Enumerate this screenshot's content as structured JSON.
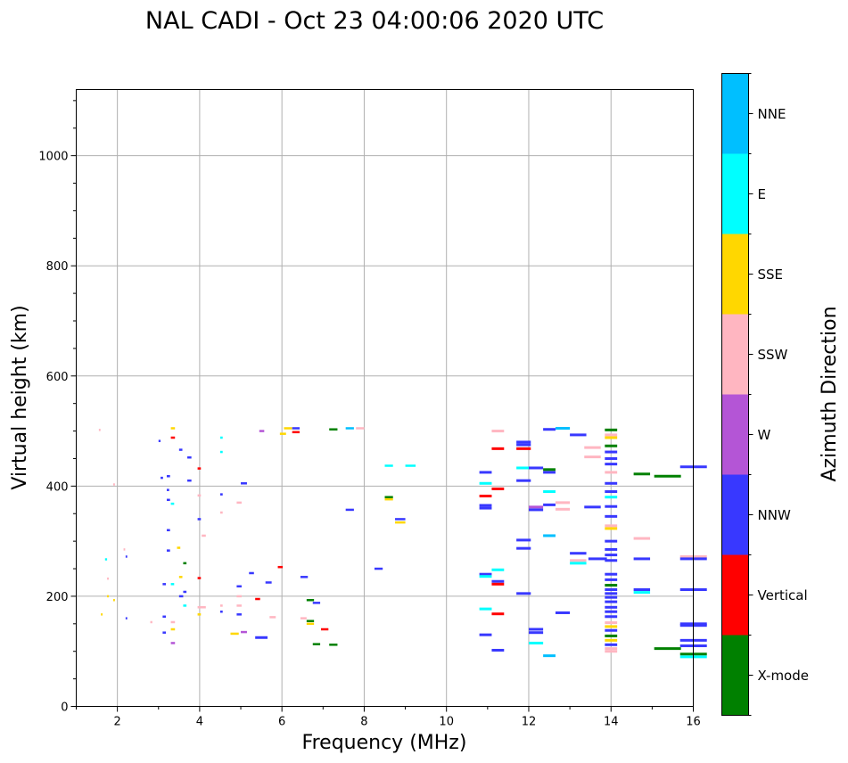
{
  "chart_data": {
    "type": "scatter",
    "title": "NAL CADI - Oct 23 04:00:06 2020 UTC",
    "xlabel": "Frequency (MHz)",
    "ylabel": "Virtual height (km)",
    "xlim": [
      1,
      16
    ],
    "ylim": [
      0,
      1120
    ],
    "xticks": [
      2,
      4,
      6,
      8,
      10,
      12,
      14,
      16
    ],
    "yticks": [
      0,
      200,
      400,
      600,
      800,
      1000
    ],
    "grid": true,
    "colorbar": {
      "label": "Azimuth Direction",
      "categories": [
        {
          "name": "X-mode",
          "color": "#008000"
        },
        {
          "name": "Vertical",
          "color": "#ff0000"
        },
        {
          "name": "NNW",
          "color": "#3838ff"
        },
        {
          "name": "W",
          "color": "#b455d6"
        },
        {
          "name": "SSW",
          "color": "#ffb6c1"
        },
        {
          "name": "SSE",
          "color": "#ffd700"
        },
        {
          "name": "E",
          "color": "#00ffff"
        },
        {
          "name": "NNE",
          "color": "#00bfff"
        }
      ]
    },
    "points": [
      {
        "f": 1.55,
        "h": 502,
        "w": 0.04,
        "d": "SSW"
      },
      {
        "f": 1.6,
        "h": 167,
        "w": 0.04,
        "d": "SSE"
      },
      {
        "f": 1.7,
        "h": 267,
        "w": 0.05,
        "d": "E"
      },
      {
        "f": 1.75,
        "h": 232,
        "w": 0.04,
        "d": "SSW"
      },
      {
        "f": 1.75,
        "h": 200,
        "w": 0.04,
        "d": "SSE"
      },
      {
        "f": 1.9,
        "h": 403,
        "w": 0.04,
        "d": "SSW"
      },
      {
        "f": 1.9,
        "h": 193,
        "w": 0.04,
        "d": "SSE"
      },
      {
        "f": 2.15,
        "h": 285,
        "w": 0.04,
        "d": "SSW"
      },
      {
        "f": 2.2,
        "h": 272,
        "w": 0.04,
        "d": "NNW"
      },
      {
        "f": 2.2,
        "h": 160,
        "w": 0.04,
        "d": "NNW"
      },
      {
        "f": 2.8,
        "h": 153,
        "w": 0.05,
        "d": "SSW"
      },
      {
        "f": 3.0,
        "h": 482,
        "w": 0.05,
        "d": "NNW"
      },
      {
        "f": 3.05,
        "h": 415,
        "w": 0.06,
        "d": "NNW"
      },
      {
        "f": 3.1,
        "h": 222,
        "w": 0.08,
        "d": "NNW"
      },
      {
        "f": 3.1,
        "h": 163,
        "w": 0.08,
        "d": "NNW"
      },
      {
        "f": 3.1,
        "h": 134,
        "w": 0.08,
        "d": "NNW"
      },
      {
        "f": 3.2,
        "h": 418,
        "w": 0.08,
        "d": "NNW"
      },
      {
        "f": 3.2,
        "h": 393,
        "w": 0.06,
        "d": "NNW"
      },
      {
        "f": 3.2,
        "h": 375,
        "w": 0.08,
        "d": "NNW"
      },
      {
        "f": 3.2,
        "h": 320,
        "w": 0.08,
        "d": "NNW"
      },
      {
        "f": 3.2,
        "h": 283,
        "w": 0.08,
        "d": "NNW"
      },
      {
        "f": 3.3,
        "h": 505,
        "w": 0.1,
        "d": "SSE"
      },
      {
        "f": 3.3,
        "h": 488,
        "w": 0.1,
        "d": "Vertical"
      },
      {
        "f": 3.3,
        "h": 368,
        "w": 0.08,
        "d": "E"
      },
      {
        "f": 3.3,
        "h": 222,
        "w": 0.08,
        "d": "E"
      },
      {
        "f": 3.3,
        "h": 153,
        "w": 0.1,
        "d": "SSW"
      },
      {
        "f": 3.3,
        "h": 140,
        "w": 0.1,
        "d": "SSE"
      },
      {
        "f": 3.3,
        "h": 115,
        "w": 0.1,
        "d": "W"
      },
      {
        "f": 3.45,
        "h": 288,
        "w": 0.08,
        "d": "SSE"
      },
      {
        "f": 3.5,
        "h": 466,
        "w": 0.08,
        "d": "NNW"
      },
      {
        "f": 3.5,
        "h": 235,
        "w": 0.08,
        "d": "SSE"
      },
      {
        "f": 3.5,
        "h": 200,
        "w": 0.1,
        "d": "NNW"
      },
      {
        "f": 3.6,
        "h": 260,
        "w": 0.08,
        "d": "X-mode"
      },
      {
        "f": 3.6,
        "h": 208,
        "w": 0.08,
        "d": "NNW"
      },
      {
        "f": 3.6,
        "h": 183,
        "w": 0.08,
        "d": "E"
      },
      {
        "f": 3.7,
        "h": 452,
        "w": 0.1,
        "d": "NNW"
      },
      {
        "f": 3.7,
        "h": 410,
        "w": 0.1,
        "d": "NNW"
      },
      {
        "f": 3.95,
        "h": 432,
        "w": 0.08,
        "d": "Vertical"
      },
      {
        "f": 3.95,
        "h": 383,
        "w": 0.08,
        "d": "SSW"
      },
      {
        "f": 3.95,
        "h": 340,
        "w": 0.08,
        "d": "NNW"
      },
      {
        "f": 3.95,
        "h": 233,
        "w": 0.08,
        "d": "Vertical"
      },
      {
        "f": 3.95,
        "h": 180,
        "w": 0.2,
        "d": "SSW"
      },
      {
        "f": 3.95,
        "h": 167,
        "w": 0.08,
        "d": "SSE"
      },
      {
        "f": 4.05,
        "h": 310,
        "w": 0.1,
        "d": "SSW"
      },
      {
        "f": 4.5,
        "h": 488,
        "w": 0.06,
        "d": "E"
      },
      {
        "f": 4.5,
        "h": 462,
        "w": 0.06,
        "d": "E"
      },
      {
        "f": 4.5,
        "h": 385,
        "w": 0.06,
        "d": "NNW"
      },
      {
        "f": 4.5,
        "h": 352,
        "w": 0.06,
        "d": "SSW"
      },
      {
        "f": 4.5,
        "h": 183,
        "w": 0.06,
        "d": "SSW"
      },
      {
        "f": 4.5,
        "h": 172,
        "w": 0.06,
        "d": "NNW"
      },
      {
        "f": 4.75,
        "h": 132,
        "w": 0.2,
        "d": "SSE"
      },
      {
        "f": 4.9,
        "h": 370,
        "w": 0.12,
        "d": "SSW"
      },
      {
        "f": 4.9,
        "h": 218,
        "w": 0.12,
        "d": "NNW"
      },
      {
        "f": 4.9,
        "h": 200,
        "w": 0.12,
        "d": "SSW"
      },
      {
        "f": 4.9,
        "h": 183,
        "w": 0.12,
        "d": "SSW"
      },
      {
        "f": 4.9,
        "h": 167,
        "w": 0.12,
        "d": "NNW"
      },
      {
        "f": 5.0,
        "h": 405,
        "w": 0.15,
        "d": "NNW"
      },
      {
        "f": 5.0,
        "h": 135,
        "w": 0.15,
        "d": "W"
      },
      {
        "f": 5.2,
        "h": 242,
        "w": 0.12,
        "d": "NNW"
      },
      {
        "f": 5.35,
        "h": 195,
        "w": 0.12,
        "d": "Vertical"
      },
      {
        "f": 5.35,
        "h": 125,
        "w": 0.3,
        "d": "NNW"
      },
      {
        "f": 5.45,
        "h": 500,
        "w": 0.12,
        "d": "W"
      },
      {
        "f": 5.6,
        "h": 225,
        "w": 0.15,
        "d": "NNW"
      },
      {
        "f": 5.7,
        "h": 162,
        "w": 0.15,
        "d": "SSW"
      },
      {
        "f": 5.9,
        "h": 253,
        "w": 0.12,
        "d": "Vertical"
      },
      {
        "f": 5.95,
        "h": 495,
        "w": 0.15,
        "d": "SSE"
      },
      {
        "f": 6.05,
        "h": 505,
        "w": 0.2,
        "d": "SSE"
      },
      {
        "f": 6.25,
        "h": 498,
        "w": 0.18,
        "d": "Vertical"
      },
      {
        "f": 6.25,
        "h": 505,
        "w": 0.18,
        "d": "NNW"
      },
      {
        "f": 6.45,
        "h": 235,
        "w": 0.18,
        "d": "NNW"
      },
      {
        "f": 6.45,
        "h": 160,
        "w": 0.15,
        "d": "SSW"
      },
      {
        "f": 6.6,
        "h": 193,
        "w": 0.18,
        "d": "X-mode"
      },
      {
        "f": 6.6,
        "h": 155,
        "w": 0.18,
        "d": "X-mode"
      },
      {
        "f": 6.6,
        "h": 150,
        "w": 0.18,
        "d": "SSE"
      },
      {
        "f": 6.75,
        "h": 188,
        "w": 0.18,
        "d": "NNW"
      },
      {
        "f": 6.75,
        "h": 113,
        "w": 0.18,
        "d": "X-mode"
      },
      {
        "f": 6.95,
        "h": 140,
        "w": 0.18,
        "d": "Vertical"
      },
      {
        "f": 7.15,
        "h": 503,
        "w": 0.2,
        "d": "X-mode"
      },
      {
        "f": 7.15,
        "h": 112,
        "w": 0.2,
        "d": "X-mode"
      },
      {
        "f": 7.55,
        "h": 505,
        "w": 0.2,
        "d": "NNE"
      },
      {
        "f": 7.55,
        "h": 357,
        "w": 0.2,
        "d": "NNW"
      },
      {
        "f": 7.8,
        "h": 505,
        "w": 0.2,
        "d": "SSW"
      },
      {
        "f": 8.25,
        "h": 250,
        "w": 0.2,
        "d": "NNW"
      },
      {
        "f": 8.5,
        "h": 437,
        "w": 0.2,
        "d": "E"
      },
      {
        "f": 8.5,
        "h": 380,
        "w": 0.2,
        "d": "X-mode"
      },
      {
        "f": 8.5,
        "h": 376,
        "w": 0.2,
        "d": "SSE"
      },
      {
        "f": 8.75,
        "h": 340,
        "w": 0.25,
        "d": "NNW"
      },
      {
        "f": 8.75,
        "h": 334,
        "w": 0.25,
        "d": "SSE"
      },
      {
        "f": 9.0,
        "h": 437,
        "w": 0.25,
        "d": "E"
      },
      {
        "f": 10.8,
        "h": 425,
        "w": 0.3,
        "d": "NNW"
      },
      {
        "f": 10.8,
        "h": 405,
        "w": 0.3,
        "d": "E"
      },
      {
        "f": 10.8,
        "h": 382,
        "w": 0.3,
        "d": "Vertical"
      },
      {
        "f": 10.8,
        "h": 365,
        "w": 0.3,
        "d": "NNW"
      },
      {
        "f": 10.8,
        "h": 360,
        "w": 0.3,
        "d": "NNW"
      },
      {
        "f": 10.8,
        "h": 240,
        "w": 0.3,
        "d": "NNW"
      },
      {
        "f": 10.8,
        "h": 236,
        "w": 0.3,
        "d": "E"
      },
      {
        "f": 10.8,
        "h": 177,
        "w": 0.3,
        "d": "E"
      },
      {
        "f": 10.8,
        "h": 130,
        "w": 0.3,
        "d": "NNW"
      },
      {
        "f": 11.1,
        "h": 500,
        "w": 0.3,
        "d": "SSW"
      },
      {
        "f": 11.1,
        "h": 468,
        "w": 0.3,
        "d": "Vertical"
      },
      {
        "f": 11.1,
        "h": 395,
        "w": 0.3,
        "d": "Vertical"
      },
      {
        "f": 11.1,
        "h": 248,
        "w": 0.3,
        "d": "E"
      },
      {
        "f": 11.1,
        "h": 227,
        "w": 0.3,
        "d": "NNW"
      },
      {
        "f": 11.1,
        "h": 222,
        "w": 0.3,
        "d": "Vertical"
      },
      {
        "f": 11.1,
        "h": 168,
        "w": 0.3,
        "d": "Vertical"
      },
      {
        "f": 11.1,
        "h": 102,
        "w": 0.3,
        "d": "NNW"
      },
      {
        "f": 11.7,
        "h": 480,
        "w": 0.35,
        "d": "NNW"
      },
      {
        "f": 11.7,
        "h": 475,
        "w": 0.35,
        "d": "NNW"
      },
      {
        "f": 11.7,
        "h": 468,
        "w": 0.35,
        "d": "Vertical"
      },
      {
        "f": 11.7,
        "h": 433,
        "w": 0.35,
        "d": "E"
      },
      {
        "f": 11.7,
        "h": 410,
        "w": 0.35,
        "d": "NNW"
      },
      {
        "f": 11.7,
        "h": 302,
        "w": 0.35,
        "d": "NNW"
      },
      {
        "f": 11.7,
        "h": 287,
        "w": 0.35,
        "d": "NNW"
      },
      {
        "f": 11.7,
        "h": 205,
        "w": 0.35,
        "d": "NNW"
      },
      {
        "f": 12.0,
        "h": 433,
        "w": 0.35,
        "d": "NNW"
      },
      {
        "f": 12.0,
        "h": 362,
        "w": 0.35,
        "d": "W"
      },
      {
        "f": 12.0,
        "h": 357,
        "w": 0.35,
        "d": "NNW"
      },
      {
        "f": 12.0,
        "h": 140,
        "w": 0.35,
        "d": "NNW"
      },
      {
        "f": 12.0,
        "h": 134,
        "w": 0.35,
        "d": "NNW"
      },
      {
        "f": 12.0,
        "h": 115,
        "w": 0.35,
        "d": "E"
      },
      {
        "f": 12.35,
        "h": 503,
        "w": 0.3,
        "d": "NNW"
      },
      {
        "f": 12.35,
        "h": 430,
        "w": 0.3,
        "d": "X-mode"
      },
      {
        "f": 12.35,
        "h": 425,
        "w": 0.3,
        "d": "NNW"
      },
      {
        "f": 12.35,
        "h": 390,
        "w": 0.3,
        "d": "E"
      },
      {
        "f": 12.35,
        "h": 366,
        "w": 0.3,
        "d": "NNW"
      },
      {
        "f": 12.35,
        "h": 310,
        "w": 0.3,
        "d": "NNE"
      },
      {
        "f": 12.35,
        "h": 92,
        "w": 0.3,
        "d": "NNE"
      },
      {
        "f": 12.65,
        "h": 505,
        "w": 0.35,
        "d": "NNE"
      },
      {
        "f": 12.65,
        "h": 370,
        "w": 0.35,
        "d": "SSW"
      },
      {
        "f": 12.65,
        "h": 358,
        "w": 0.35,
        "d": "SSW"
      },
      {
        "f": 12.65,
        "h": 170,
        "w": 0.35,
        "d": "NNW"
      },
      {
        "f": 13.0,
        "h": 493,
        "w": 0.4,
        "d": "NNW"
      },
      {
        "f": 13.0,
        "h": 278,
        "w": 0.4,
        "d": "NNW"
      },
      {
        "f": 13.0,
        "h": 265,
        "w": 0.4,
        "d": "SSW"
      },
      {
        "f": 13.0,
        "h": 260,
        "w": 0.4,
        "d": "E"
      },
      {
        "f": 13.35,
        "h": 470,
        "w": 0.4,
        "d": "SSW"
      },
      {
        "f": 13.35,
        "h": 453,
        "w": 0.4,
        "d": "SSW"
      },
      {
        "f": 13.35,
        "h": 362,
        "w": 0.4,
        "d": "NNW"
      },
      {
        "f": 13.45,
        "h": 268,
        "w": 0.45,
        "d": "NNW"
      },
      {
        "f": 13.85,
        "h": 502,
        "w": 0.3,
        "d": "X-mode"
      },
      {
        "f": 13.85,
        "h": 493,
        "w": 0.3,
        "d": "SSW"
      },
      {
        "f": 13.85,
        "h": 488,
        "w": 0.3,
        "d": "SSE"
      },
      {
        "f": 13.85,
        "h": 473,
        "w": 0.3,
        "d": "X-mode"
      },
      {
        "f": 13.85,
        "h": 462,
        "w": 0.3,
        "d": "NNW"
      },
      {
        "f": 13.85,
        "h": 450,
        "w": 0.3,
        "d": "NNW"
      },
      {
        "f": 13.85,
        "h": 440,
        "w": 0.3,
        "d": "NNW"
      },
      {
        "f": 13.85,
        "h": 425,
        "w": 0.3,
        "d": "SSW"
      },
      {
        "f": 13.85,
        "h": 405,
        "w": 0.3,
        "d": "NNW"
      },
      {
        "f": 13.85,
        "h": 390,
        "w": 0.3,
        "d": "NNW"
      },
      {
        "f": 13.85,
        "h": 380,
        "w": 0.3,
        "d": "E"
      },
      {
        "f": 13.85,
        "h": 363,
        "w": 0.3,
        "d": "NNW"
      },
      {
        "f": 13.85,
        "h": 345,
        "w": 0.3,
        "d": "NNW"
      },
      {
        "f": 13.85,
        "h": 328,
        "w": 0.3,
        "d": "SSW"
      },
      {
        "f": 13.85,
        "h": 323,
        "w": 0.3,
        "d": "SSE"
      },
      {
        "f": 13.85,
        "h": 300,
        "w": 0.3,
        "d": "NNW"
      },
      {
        "f": 13.85,
        "h": 285,
        "w": 0.3,
        "d": "NNW"
      },
      {
        "f": 13.85,
        "h": 275,
        "w": 0.3,
        "d": "NNW"
      },
      {
        "f": 13.85,
        "h": 265,
        "w": 0.3,
        "d": "NNW"
      },
      {
        "f": 13.85,
        "h": 240,
        "w": 0.3,
        "d": "NNW"
      },
      {
        "f": 13.85,
        "h": 230,
        "w": 0.3,
        "d": "NNW"
      },
      {
        "f": 13.85,
        "h": 220,
        "w": 0.3,
        "d": "X-mode"
      },
      {
        "f": 13.85,
        "h": 212,
        "w": 0.3,
        "d": "NNW"
      },
      {
        "f": 13.85,
        "h": 205,
        "w": 0.3,
        "d": "NNW"
      },
      {
        "f": 13.85,
        "h": 198,
        "w": 0.3,
        "d": "NNW"
      },
      {
        "f": 13.85,
        "h": 190,
        "w": 0.3,
        "d": "NNW"
      },
      {
        "f": 13.85,
        "h": 180,
        "w": 0.3,
        "d": "NNW"
      },
      {
        "f": 13.85,
        "h": 172,
        "w": 0.3,
        "d": "NNW"
      },
      {
        "f": 13.85,
        "h": 163,
        "w": 0.3,
        "d": "NNW"
      },
      {
        "f": 13.85,
        "h": 152,
        "w": 0.3,
        "d": "SSW"
      },
      {
        "f": 13.85,
        "h": 145,
        "w": 0.3,
        "d": "SSE"
      },
      {
        "f": 13.85,
        "h": 138,
        "w": 0.3,
        "d": "NNW"
      },
      {
        "f": 13.85,
        "h": 128,
        "w": 0.3,
        "d": "X-mode"
      },
      {
        "f": 13.85,
        "h": 120,
        "w": 0.3,
        "d": "SSE"
      },
      {
        "f": 13.85,
        "h": 112,
        "w": 0.3,
        "d": "NNW"
      },
      {
        "f": 13.85,
        "h": 105,
        "w": 0.3,
        "d": "SSW"
      },
      {
        "f": 13.85,
        "h": 100,
        "w": 0.3,
        "d": "SSW"
      },
      {
        "f": 14.55,
        "h": 422,
        "w": 0.4,
        "d": "X-mode"
      },
      {
        "f": 14.55,
        "h": 305,
        "w": 0.4,
        "d": "SSW"
      },
      {
        "f": 14.55,
        "h": 268,
        "w": 0.4,
        "d": "NNW"
      },
      {
        "f": 14.55,
        "h": 212,
        "w": 0.4,
        "d": "NNW"
      },
      {
        "f": 14.55,
        "h": 207,
        "w": 0.4,
        "d": "E"
      },
      {
        "f": 15.05,
        "h": 418,
        "w": 0.65,
        "d": "X-mode"
      },
      {
        "f": 15.05,
        "h": 105,
        "w": 0.65,
        "d": "X-mode"
      },
      {
        "f": 15.68,
        "h": 435,
        "w": 0.65,
        "d": "NNW"
      },
      {
        "f": 15.68,
        "h": 272,
        "w": 0.65,
        "d": "SSW"
      },
      {
        "f": 15.68,
        "h": 268,
        "w": 0.65,
        "d": "NNW"
      },
      {
        "f": 15.68,
        "h": 212,
        "w": 0.65,
        "d": "NNW"
      },
      {
        "f": 15.68,
        "h": 150,
        "w": 0.65,
        "d": "NNW"
      },
      {
        "f": 15.68,
        "h": 147,
        "w": 0.65,
        "d": "NNW"
      },
      {
        "f": 15.68,
        "h": 120,
        "w": 0.65,
        "d": "NNW"
      },
      {
        "f": 15.68,
        "h": 110,
        "w": 0.65,
        "d": "NNW"
      },
      {
        "f": 15.68,
        "h": 95,
        "w": 0.65,
        "d": "X-mode"
      },
      {
        "f": 15.68,
        "h": 90,
        "w": 0.65,
        "d": "E"
      }
    ]
  }
}
